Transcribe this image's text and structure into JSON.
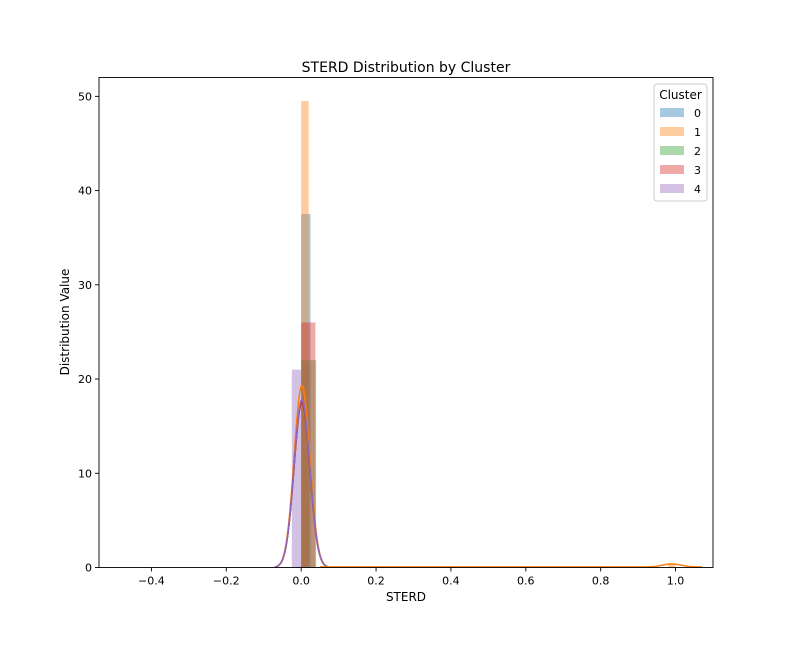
{
  "chart_data": {
    "type": "histogram",
    "title": "STERD Distribution by Cluster",
    "xlabel": "STERD",
    "ylabel": "Distribution Value",
    "xlim": [
      -0.54,
      1.1
    ],
    "ylim": [
      0,
      52
    ],
    "x_ticks": [
      -0.4,
      -0.2,
      0.0,
      0.2,
      0.4,
      0.6,
      0.8,
      1.0
    ],
    "x_tick_labels": [
      "−0.4",
      "−0.2",
      "0.0",
      "0.2",
      "0.4",
      "0.6",
      "0.8",
      "1.0"
    ],
    "y_ticks": [
      0,
      10,
      20,
      30,
      40,
      50
    ],
    "y_tick_labels": [
      "0",
      "10",
      "20",
      "30",
      "40",
      "50"
    ],
    "grid": false,
    "legend": {
      "title": "Cluster",
      "position": "top-right"
    },
    "series": [
      {
        "name": "0",
        "color": "#1f77b4",
        "bins": [
          {
            "x0": 0.0,
            "x1": 0.025,
            "value": 37.5
          }
        ],
        "kde_peak": 17.7
      },
      {
        "name": "1",
        "color": "#ff7f0e",
        "bins": [
          {
            "x0": 0.0,
            "x1": 0.02,
            "value": 49.5
          },
          {
            "x0": 0.98,
            "x1": 1.0,
            "value": 0.4
          }
        ],
        "kde_peak": 19.3
      },
      {
        "name": "2",
        "color": "#2ca02c",
        "bins": [
          {
            "x0": 0.0,
            "x1": 0.04,
            "value": 22
          }
        ],
        "kde_peak": 17.5
      },
      {
        "name": "3",
        "color": "#d62728",
        "bins": [
          {
            "x0": 0.0,
            "x1": 0.038,
            "value": 26
          }
        ],
        "kde_peak": 17.5
      },
      {
        "name": "4",
        "color": "#9467bd",
        "bins": [
          {
            "x0": -0.025,
            "x1": 0.0,
            "value": 21
          }
        ],
        "kde_peak": 17.8
      }
    ]
  }
}
